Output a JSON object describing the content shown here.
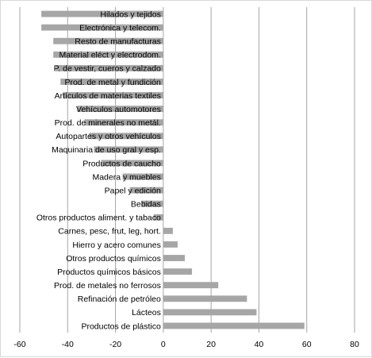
{
  "chart_data": {
    "type": "bar",
    "orientation": "horizontal",
    "categories": [
      "Hilados y tejidos",
      "Electrónica y telecom.",
      "Resto de manufacturas",
      "Material eléct y electrodom.",
      "P. de vestir, cueros y calzado",
      "Prod. de metal y fundición",
      "Artículos de materias textiles",
      "Vehículos automotores",
      "Prod. de minerales no metál.",
      "Autopartes y otros vehículos",
      "Maquinaria de uso gral y esp.",
      "Productos de caucho",
      "Madera y muebles",
      "Papel y edición",
      "Bebidas",
      "Otros productos aliment. y tabaco",
      "Carnes, pesc, frut, leg, hort.",
      "Hierro y acero comunes",
      "Otros productos químicos",
      "Productos químicos básicos",
      "Prod. de metales no ferrosos",
      "Refinación de petróleo",
      "Lácteos",
      "Productos de plástico"
    ],
    "values": [
      -51,
      -51,
      -46,
      -46,
      -45,
      -43,
      -42,
      -36,
      -33,
      -31,
      -29,
      -26,
      -17,
      -14,
      -9,
      -4,
      4,
      6,
      9,
      12,
      23,
      35,
      39,
      59
    ],
    "xlim": [
      -60,
      80
    ],
    "xticks": [
      "-60",
      "-40",
      "-20",
      "0",
      "20",
      "40",
      "60",
      "80"
    ],
    "grid": "vertical",
    "bar_color": "#a6a6a6",
    "grid_color": "#a6a6a6",
    "legend": "none"
  }
}
